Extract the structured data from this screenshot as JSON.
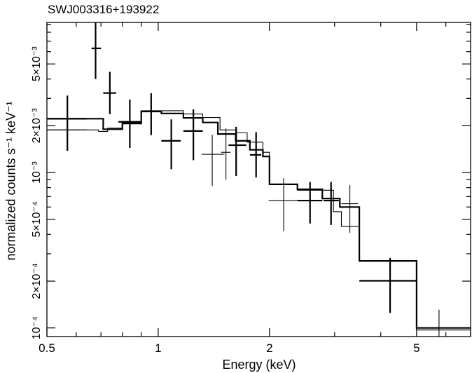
{
  "chart_data": {
    "type": "scatter",
    "title": "SWJ003316+193922",
    "xlabel": "Energy (keV)",
    "ylabel": "normalized counts s⁻¹ keV⁻¹",
    "x_scale": "log",
    "y_scale": "log",
    "xlim": [
      0.5,
      7.0
    ],
    "ylim": [
      8.8e-05,
      0.00925
    ],
    "x_ticks": [
      {
        "value": 0.5,
        "label": "0.5"
      },
      {
        "value": 1,
        "label": "1"
      },
      {
        "value": 2,
        "label": "2"
      },
      {
        "value": 5,
        "label": "5"
      }
    ],
    "y_ticks": [
      {
        "value": 0.0001,
        "label": "10⁻⁴"
      },
      {
        "value": 0.0002,
        "label": "2×10⁻⁴"
      },
      {
        "value": 0.0005,
        "label": "5×10⁻⁴"
      },
      {
        "value": 0.001,
        "label": "10⁻³"
      },
      {
        "value": 0.002,
        "label": "2×10⁻³"
      },
      {
        "value": 0.005,
        "label": "5×10⁻³"
      }
    ],
    "grid": false,
    "series": [
      {
        "style": "data-thick",
        "points": [
          {
            "x": 0.568,
            "xlo": 0.5,
            "xhi": 0.64,
            "y": 0.00222,
            "ylo": 0.00138,
            "yhi": 0.00313
          },
          {
            "x": 0.677,
            "xlo": 0.66,
            "xhi": 0.7,
            "y": 0.0063,
            "ylo": 0.004,
            "yhi": 0.0092
          },
          {
            "x": 0.74,
            "xlo": 0.71,
            "xhi": 0.77,
            "y": 0.00325,
            "ylo": 0.00238,
            "yhi": 0.00445
          },
          {
            "x": 0.838,
            "xlo": 0.78,
            "xhi": 0.9,
            "y": 0.00212,
            "ylo": 0.00144,
            "yhi": 0.00295
          },
          {
            "x": 0.957,
            "xlo": 0.9,
            "xhi": 1.02,
            "y": 0.00247,
            "ylo": 0.00174,
            "yhi": 0.00324
          },
          {
            "x": 1.085,
            "xlo": 1.02,
            "xhi": 1.15,
            "y": 0.0016,
            "ylo": 0.00105,
            "yhi": 0.0022
          },
          {
            "x": 1.245,
            "xlo": 1.17,
            "xhi": 1.32,
            "y": 0.00185,
            "ylo": 0.0012,
            "yhi": 0.00255
          },
          {
            "x": 1.625,
            "xlo": 1.55,
            "xhi": 1.73,
            "y": 0.0015,
            "ylo": 0.00095,
            "yhi": 0.00197
          },
          {
            "x": 1.84,
            "xlo": 1.77,
            "xhi": 1.9,
            "y": 0.0013,
            "ylo": 0.00093,
            "yhi": 0.00182
          },
          {
            "x": 2.575,
            "xlo": 2.38,
            "xhi": 2.78,
            "y": 0.00066,
            "ylo": 0.00047,
            "yhi": 0.00087
          },
          {
            "x": 2.935,
            "xlo": 2.8,
            "xhi": 3.08,
            "y": 0.00066,
            "ylo": 0.00046,
            "yhi": 0.00087
          },
          {
            "x": 4.24,
            "xlo": 3.5,
            "xhi": 5.0,
            "y": 0.000201,
            "ylo": 0.000125,
            "yhi": 0.000282
          }
        ]
      },
      {
        "style": "data-thin",
        "points": [
          {
            "x": 0.568,
            "xlo": 0.5,
            "xhi": 0.64,
            "y": 0.00188,
            "ylo": 0.00145,
            "yhi": 0.00275
          },
          {
            "x": 1.4,
            "xlo": 1.31,
            "xhi": 1.51,
            "y": 0.00131,
            "ylo": 0.00082,
            "yhi": 0.00175
          },
          {
            "x": 1.525,
            "xlo": 1.48,
            "xhi": 1.57,
            "y": 0.00135,
            "ylo": 0.0009,
            "yhi": 0.00192
          },
          {
            "x": 2.185,
            "xlo": 1.99,
            "xhi": 2.38,
            "y": 0.00066,
            "ylo": 0.00042,
            "yhi": 0.00092
          },
          {
            "x": 3.3,
            "xlo": 3.13,
            "xhi": 3.47,
            "y": 0.00063,
            "ylo": 0.00041,
            "yhi": 0.00083
          },
          {
            "x": 5.75,
            "xlo": 5.0,
            "xhi": 7.0,
            "y": 9.7e-05,
            "ylo": 8.8e-05,
            "yhi": 0.000131
          }
        ]
      },
      {
        "style": "model-thick",
        "steps": [
          [
            0.5,
            0.00222
          ],
          [
            0.64,
            0.00222
          ],
          [
            0.71,
            0.0019
          ],
          [
            0.8,
            0.00207
          ],
          [
            0.9,
            0.00248
          ],
          [
            1.02,
            0.0024
          ],
          [
            1.17,
            0.00225
          ],
          [
            1.32,
            0.0021
          ],
          [
            1.45,
            0.00177
          ],
          [
            1.62,
            0.0016
          ],
          [
            1.77,
            0.0014
          ],
          [
            1.92,
            0.00127
          ],
          [
            2.0,
            0.00084
          ],
          [
            2.38,
            0.00078
          ],
          [
            2.78,
            0.00068
          ],
          [
            3.1,
            0.0006
          ],
          [
            3.5,
            0.00027
          ],
          [
            5.0,
            0.0001
          ],
          [
            7.0,
            0.0001
          ]
        ]
      },
      {
        "style": "model-thin",
        "steps": [
          [
            0.5,
            0.00188
          ],
          [
            0.66,
            0.00188
          ],
          [
            0.69,
            0.00184
          ],
          [
            0.73,
            0.00193
          ],
          [
            0.8,
            0.0021
          ],
          [
            0.9,
            0.0025
          ],
          [
            1.0,
            0.0025
          ],
          [
            1.17,
            0.00238
          ],
          [
            1.32,
            0.00226
          ],
          [
            1.47,
            0.00188
          ],
          [
            1.62,
            0.0018
          ],
          [
            1.74,
            0.00157
          ],
          [
            1.92,
            0.00135
          ],
          [
            2.0,
            0.00084
          ],
          [
            2.38,
            0.00077
          ],
          [
            2.98,
            0.00056
          ],
          [
            3.13,
            0.00045
          ],
          [
            3.5,
            0.00027
          ],
          [
            5.0,
            9.7e-05
          ],
          [
            7.0,
            9.7e-05
          ]
        ]
      }
    ]
  }
}
